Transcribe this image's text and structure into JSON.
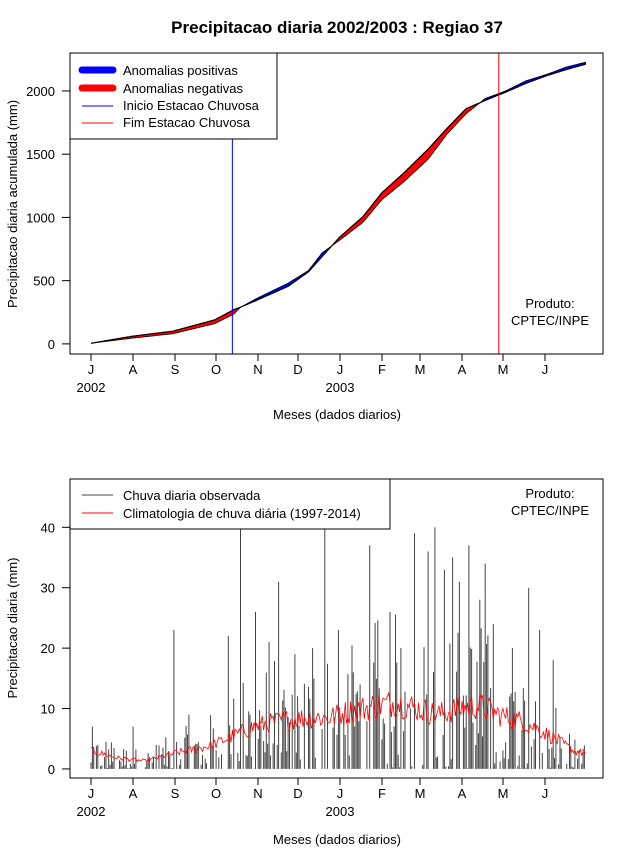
{
  "title": "Precipitacao diaria 2002/2003 : Regiao 37",
  "chart_data": [
    {
      "type": "area",
      "ylabel": "Precipitacao diaria acumulada (mm)",
      "xlabel": "Meses (dados diarios)",
      "month_labels": [
        "J",
        "A",
        "S",
        "O",
        "N",
        "D",
        "J",
        "F",
        "M",
        "A",
        "M",
        "J"
      ],
      "year_labels": [
        "2002",
        "2003"
      ],
      "yticks": [
        0,
        500,
        1000,
        1500,
        2000
      ],
      "ylim": [
        -80,
        2300
      ],
      "legend": [
        "Anomalias positivas",
        "Anomalias negativas",
        "Inicio Estacao Chuvosa",
        "Fim Estacao Chuvosa"
      ],
      "colors": {
        "positive": "#0000ff",
        "negative": "#ff0000",
        "start": "#0000ff",
        "end": "#ff0000"
      },
      "product_label": [
        "Produto:",
        "CPTEC/INPE"
      ],
      "season_start_day": 104,
      "season_end_day": 300,
      "day_index": [
        0,
        30,
        60,
        91,
        105,
        110,
        122,
        145,
        160,
        170,
        183,
        200,
        214,
        230,
        248,
        262,
        276,
        290,
        305,
        320,
        335,
        350,
        365
      ],
      "observed_accumulated": [
        5,
        45,
        80,
        160,
        235,
        290,
        360,
        480,
        580,
        720,
        820,
        960,
        1140,
        1280,
        1460,
        1660,
        1820,
        1940,
        2000,
        2080,
        2130,
        2190,
        2230
      ],
      "climatology_accumulated": [
        5,
        60,
        100,
        190,
        270,
        290,
        345,
        455,
        570,
        690,
        845,
        1005,
        1195,
        1350,
        1540,
        1705,
        1860,
        1925,
        1990,
        2060,
        2120,
        2170,
        2215
      ]
    },
    {
      "type": "bar",
      "ylabel": "Precipitacao diaria (mm)",
      "xlabel": "Meses (dados diarios)",
      "month_labels": [
        "J",
        "A",
        "S",
        "O",
        "N",
        "D",
        "J",
        "F",
        "M",
        "A",
        "M",
        "J"
      ],
      "year_labels": [
        "2002",
        "2003"
      ],
      "yticks": [
        0,
        10,
        20,
        30,
        40
      ],
      "ylim": [
        -1.5,
        48
      ],
      "legend": [
        "Chuva diaria observada",
        "Climatologia de chuva diária (1997-2014)"
      ],
      "colors": {
        "observed": "#444444",
        "climatology": "#ff0000"
      },
      "product_label": [
        "Produto:",
        "CPTEC/INPE"
      ],
      "days": 365,
      "peak_days": [
        10,
        31,
        61,
        72,
        101,
        110,
        121,
        131,
        138,
        150,
        163,
        172,
        182,
        193,
        205,
        220,
        228,
        238,
        248,
        253,
        260,
        266,
        271,
        278,
        286,
        290,
        296,
        310,
        322,
        330,
        340,
        345
      ],
      "peak_values": [
        2,
        7,
        23,
        9,
        22,
        40,
        26,
        21,
        31,
        19,
        20,
        40,
        23,
        16,
        37,
        26,
        20,
        39,
        36,
        40,
        33,
        35,
        31,
        37,
        28,
        34,
        24,
        20,
        30,
        23,
        18,
        5
      ],
      "climatology_anchor_days": [
        0,
        20,
        40,
        60,
        75,
        90,
        105,
        120,
        140,
        160,
        175,
        190,
        210,
        225,
        240,
        255,
        270,
        285,
        300,
        315,
        330,
        345,
        355,
        365
      ],
      "climatology_anchor_values": [
        3.0,
        1.8,
        1.3,
        2.5,
        3.2,
        4.0,
        5.5,
        7.0,
        8.0,
        8.5,
        8.5,
        9.5,
        10.5,
        11.0,
        10.0,
        9.0,
        10.0,
        10.5,
        9.0,
        8.0,
        6.5,
        4.5,
        3.0,
        2.5
      ]
    }
  ]
}
